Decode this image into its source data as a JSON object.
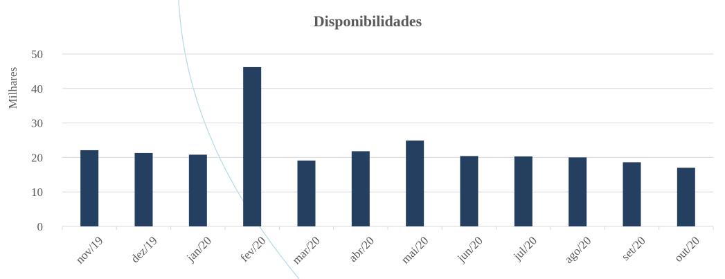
{
  "chart_data": {
    "type": "bar",
    "title": "Disponibilidades",
    "ylabel": "Milhares",
    "xlabel": "",
    "categories": [
      "nov/19",
      "dez/19",
      "jan/20",
      "fev/20",
      "mar/20",
      "abr/20",
      "mai/20",
      "jun/20",
      "jul/20",
      "ago/20",
      "set/20",
      "out/20"
    ],
    "values": [
      22.1,
      21.3,
      20.8,
      46.2,
      19.1,
      21.8,
      24.9,
      20.4,
      20.3,
      20.0,
      18.6,
      17.0
    ],
    "yticks": [
      "0",
      "10",
      "20",
      "30",
      "40",
      "50"
    ],
    "ylim": [
      0,
      50
    ],
    "grid": true,
    "legend": "none",
    "bar_color": "#243f60",
    "grid_color": "#d9d9d9",
    "text_color": "#595959",
    "decor_color": "#b8dce8"
  }
}
